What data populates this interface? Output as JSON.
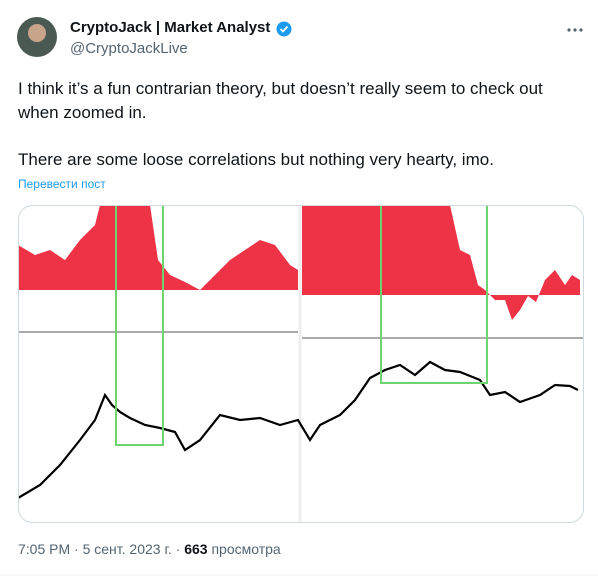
{
  "author": {
    "name": "CryptoJack | Market Analyst",
    "handle": "@CryptoJackLive"
  },
  "tweet": {
    "text_lines": [
      "I think it’s a fun contrarian theory, but doesn’t really seem to check out",
      "when zoomed in.",
      "There are some loose correlations but nothing very hearty, imo."
    ],
    "translate": "Перевести пост"
  },
  "footer": {
    "time": "7:05 PM",
    "separator": "·",
    "date": "5 сент. 2023 г.",
    "views": "663",
    "views_label": "просмотра"
  }
}
